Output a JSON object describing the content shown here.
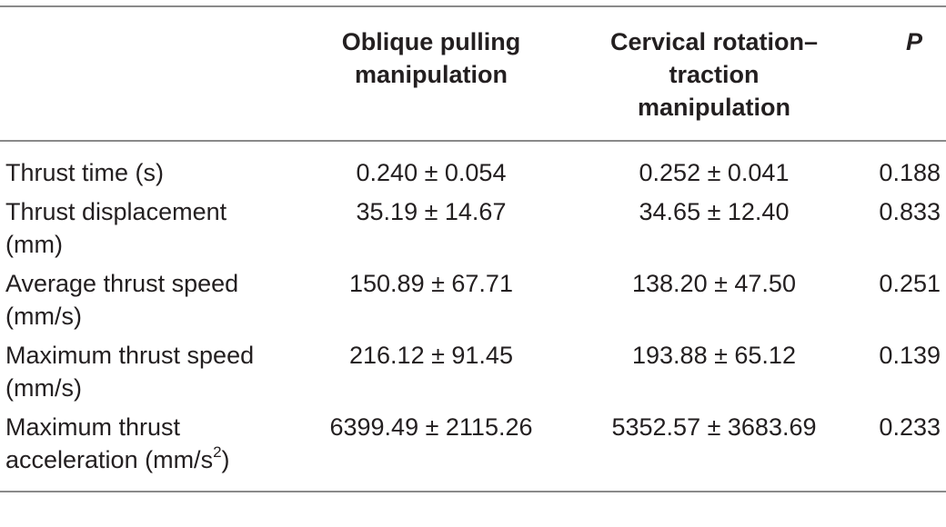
{
  "table": {
    "headers": [
      "",
      "Oblique pulling manipulation",
      "Cervical rotation–traction manipulation",
      "P"
    ],
    "rows": [
      {
        "label_line1": "Thrust time (s)",
        "label_line2": "",
        "label_sup": "",
        "label_tail": "",
        "oblique": "0.240 ± 0.054",
        "cervical": "0.252 ± 0.041",
        "p": "0.188"
      },
      {
        "label_line1": "Thrust displacement",
        "label_line2": "(mm)",
        "label_sup": "",
        "label_tail": "",
        "oblique": "35.19 ± 14.67",
        "cervical": "34.65 ± 12.40",
        "p": "0.833"
      },
      {
        "label_line1": "Average thrust speed",
        "label_line2": "(mm/s)",
        "label_sup": "",
        "label_tail": "",
        "oblique": "150.89 ± 67.71",
        "cervical": "138.20 ± 47.50",
        "p": "0.251"
      },
      {
        "label_line1": "Maximum thrust speed",
        "label_line2": "(mm/s)",
        "label_sup": "",
        "label_tail": "",
        "oblique": "216.12 ± 91.45",
        "cervical": "193.88 ± 65.12",
        "p": "0.139"
      },
      {
        "label_line1": "Maximum thrust",
        "label_line2": "acceleration (mm/s",
        "label_sup": "2",
        "label_tail": ")",
        "oblique": "6399.49 ± 2115.26",
        "cervical": "5352.57 ± 3683.69",
        "p": "0.233"
      }
    ]
  }
}
